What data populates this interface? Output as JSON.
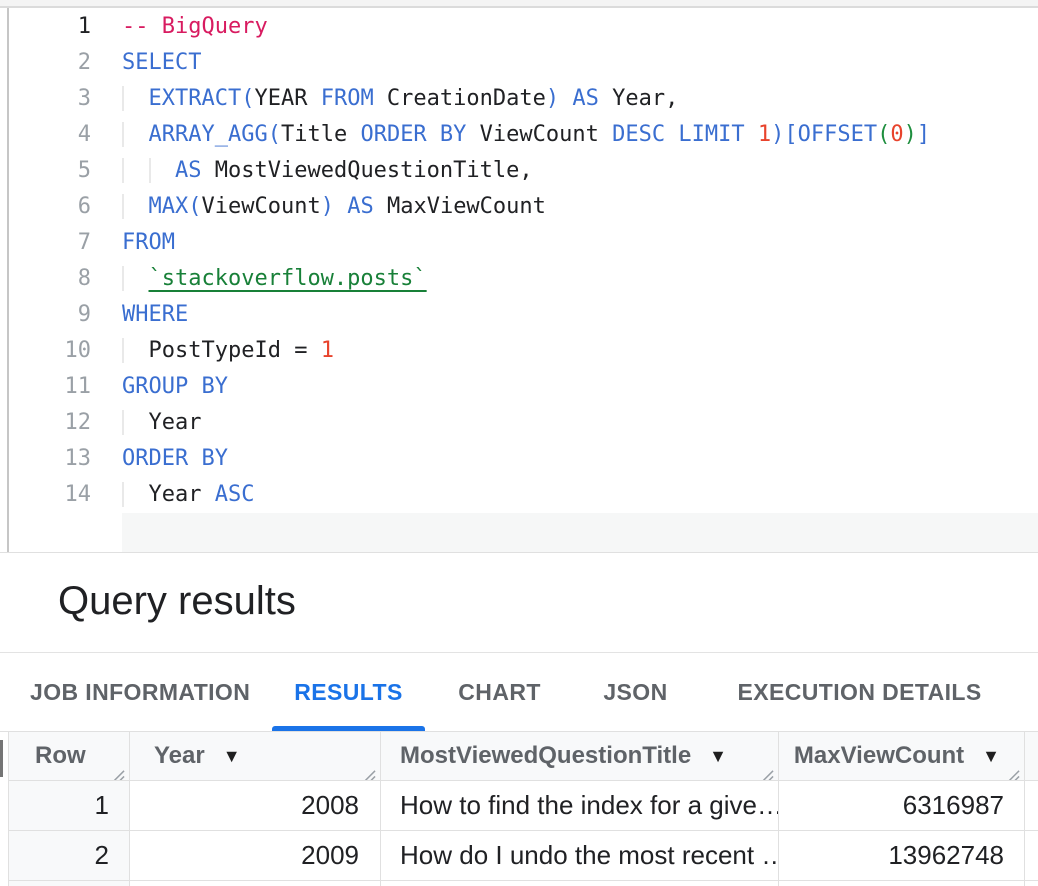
{
  "colors": {
    "text": "#202124",
    "keyword": "#3a6ed0",
    "comment": "#d81b60",
    "number": "#e8432c",
    "table_ref": "#188038",
    "bracket": "#1e8e3e",
    "accent": "#1a73e8",
    "tab_inactive": "#5f6368"
  },
  "editor": {
    "lines": [
      {
        "n": "1",
        "active": true,
        "tokens": [
          [
            "-- BigQuery",
            "c"
          ]
        ]
      },
      {
        "n": "2",
        "tokens": [
          [
            "SELECT",
            "k"
          ]
        ]
      },
      {
        "n": "3",
        "tokens": [
          [
            "  ",
            "d"
          ],
          [
            "EXTRACT",
            "k"
          ],
          [
            "(",
            "k"
          ],
          [
            "YEAR",
            "i"
          ],
          [
            " ",
            "i"
          ],
          [
            "FROM",
            "k"
          ],
          [
            " CreationDate",
            "i"
          ],
          [
            ")",
            "k"
          ],
          [
            " ",
            "i"
          ],
          [
            "AS",
            "k"
          ],
          [
            " Year,",
            "i"
          ]
        ]
      },
      {
        "n": "4",
        "tokens": [
          [
            "  ",
            "d"
          ],
          [
            "ARRAY_AGG",
            "k"
          ],
          [
            "(",
            "k"
          ],
          [
            "Title ",
            "i"
          ],
          [
            "ORDER BY",
            "k"
          ],
          [
            " ViewCount ",
            "i"
          ],
          [
            "DESC",
            "k"
          ],
          [
            " ",
            "i"
          ],
          [
            "LIMIT",
            "k"
          ],
          [
            " ",
            "i"
          ],
          [
            "1",
            "n"
          ],
          [
            ")",
            "k"
          ],
          [
            "[",
            "k"
          ],
          [
            "OFFSET",
            "k"
          ],
          [
            "(",
            "g"
          ],
          [
            "0",
            "n"
          ],
          [
            ")",
            "g"
          ],
          [
            "]",
            "k"
          ]
        ]
      },
      {
        "n": "5",
        "tokens": [
          [
            "  ",
            "d"
          ],
          [
            "  ",
            "d"
          ],
          [
            "AS",
            "k"
          ],
          [
            " MostViewedQuestionTitle,",
            "i"
          ]
        ]
      },
      {
        "n": "6",
        "tokens": [
          [
            "  ",
            "d"
          ],
          [
            "MAX",
            "k"
          ],
          [
            "(",
            "k"
          ],
          [
            "ViewCount",
            "i"
          ],
          [
            ")",
            "k"
          ],
          [
            " ",
            "i"
          ],
          [
            "AS",
            "k"
          ],
          [
            " MaxViewCount",
            "i"
          ]
        ]
      },
      {
        "n": "7",
        "tokens": [
          [
            "FROM",
            "k"
          ]
        ]
      },
      {
        "n": "8",
        "tokens": [
          [
            "  ",
            "d"
          ],
          [
            "`stackoverflow.posts`",
            "t"
          ]
        ]
      },
      {
        "n": "9",
        "tokens": [
          [
            "WHERE",
            "k"
          ]
        ]
      },
      {
        "n": "10",
        "tokens": [
          [
            "  ",
            "d"
          ],
          [
            "PostTypeId ",
            "i"
          ],
          [
            "= ",
            "i"
          ],
          [
            "1",
            "n"
          ]
        ]
      },
      {
        "n": "11",
        "tokens": [
          [
            "GROUP BY",
            "k"
          ]
        ]
      },
      {
        "n": "12",
        "tokens": [
          [
            "  ",
            "d"
          ],
          [
            "Year",
            "i"
          ]
        ]
      },
      {
        "n": "13",
        "tokens": [
          [
            "ORDER BY",
            "k"
          ]
        ]
      },
      {
        "n": "14",
        "tokens": [
          [
            "  ",
            "d"
          ],
          [
            "Year ",
            "i"
          ],
          [
            "ASC",
            "k"
          ]
        ]
      }
    ]
  },
  "results": {
    "title": "Query results",
    "tabs": [
      {
        "label": "JOB INFORMATION",
        "active": false
      },
      {
        "label": "RESULTS",
        "active": true
      },
      {
        "label": "CHART",
        "active": false
      },
      {
        "label": "JSON",
        "active": false
      },
      {
        "label": "EXECUTION DETAILS",
        "active": false
      }
    ],
    "table": {
      "sort_arrow_glyph": "▼",
      "columns": [
        {
          "label": "Row",
          "sort_arrow": false
        },
        {
          "label": "Year",
          "sort_arrow": true
        },
        {
          "label": "MostViewedQuestionTitle",
          "sort_arrow": true
        },
        {
          "label": "MaxViewCount",
          "sort_arrow": true
        }
      ],
      "rows": [
        [
          "1",
          "2008",
          "How to find the index for a give…",
          "6316987"
        ],
        [
          "2",
          "2009",
          "How do I undo the most recent …",
          "13962748"
        ]
      ]
    }
  }
}
